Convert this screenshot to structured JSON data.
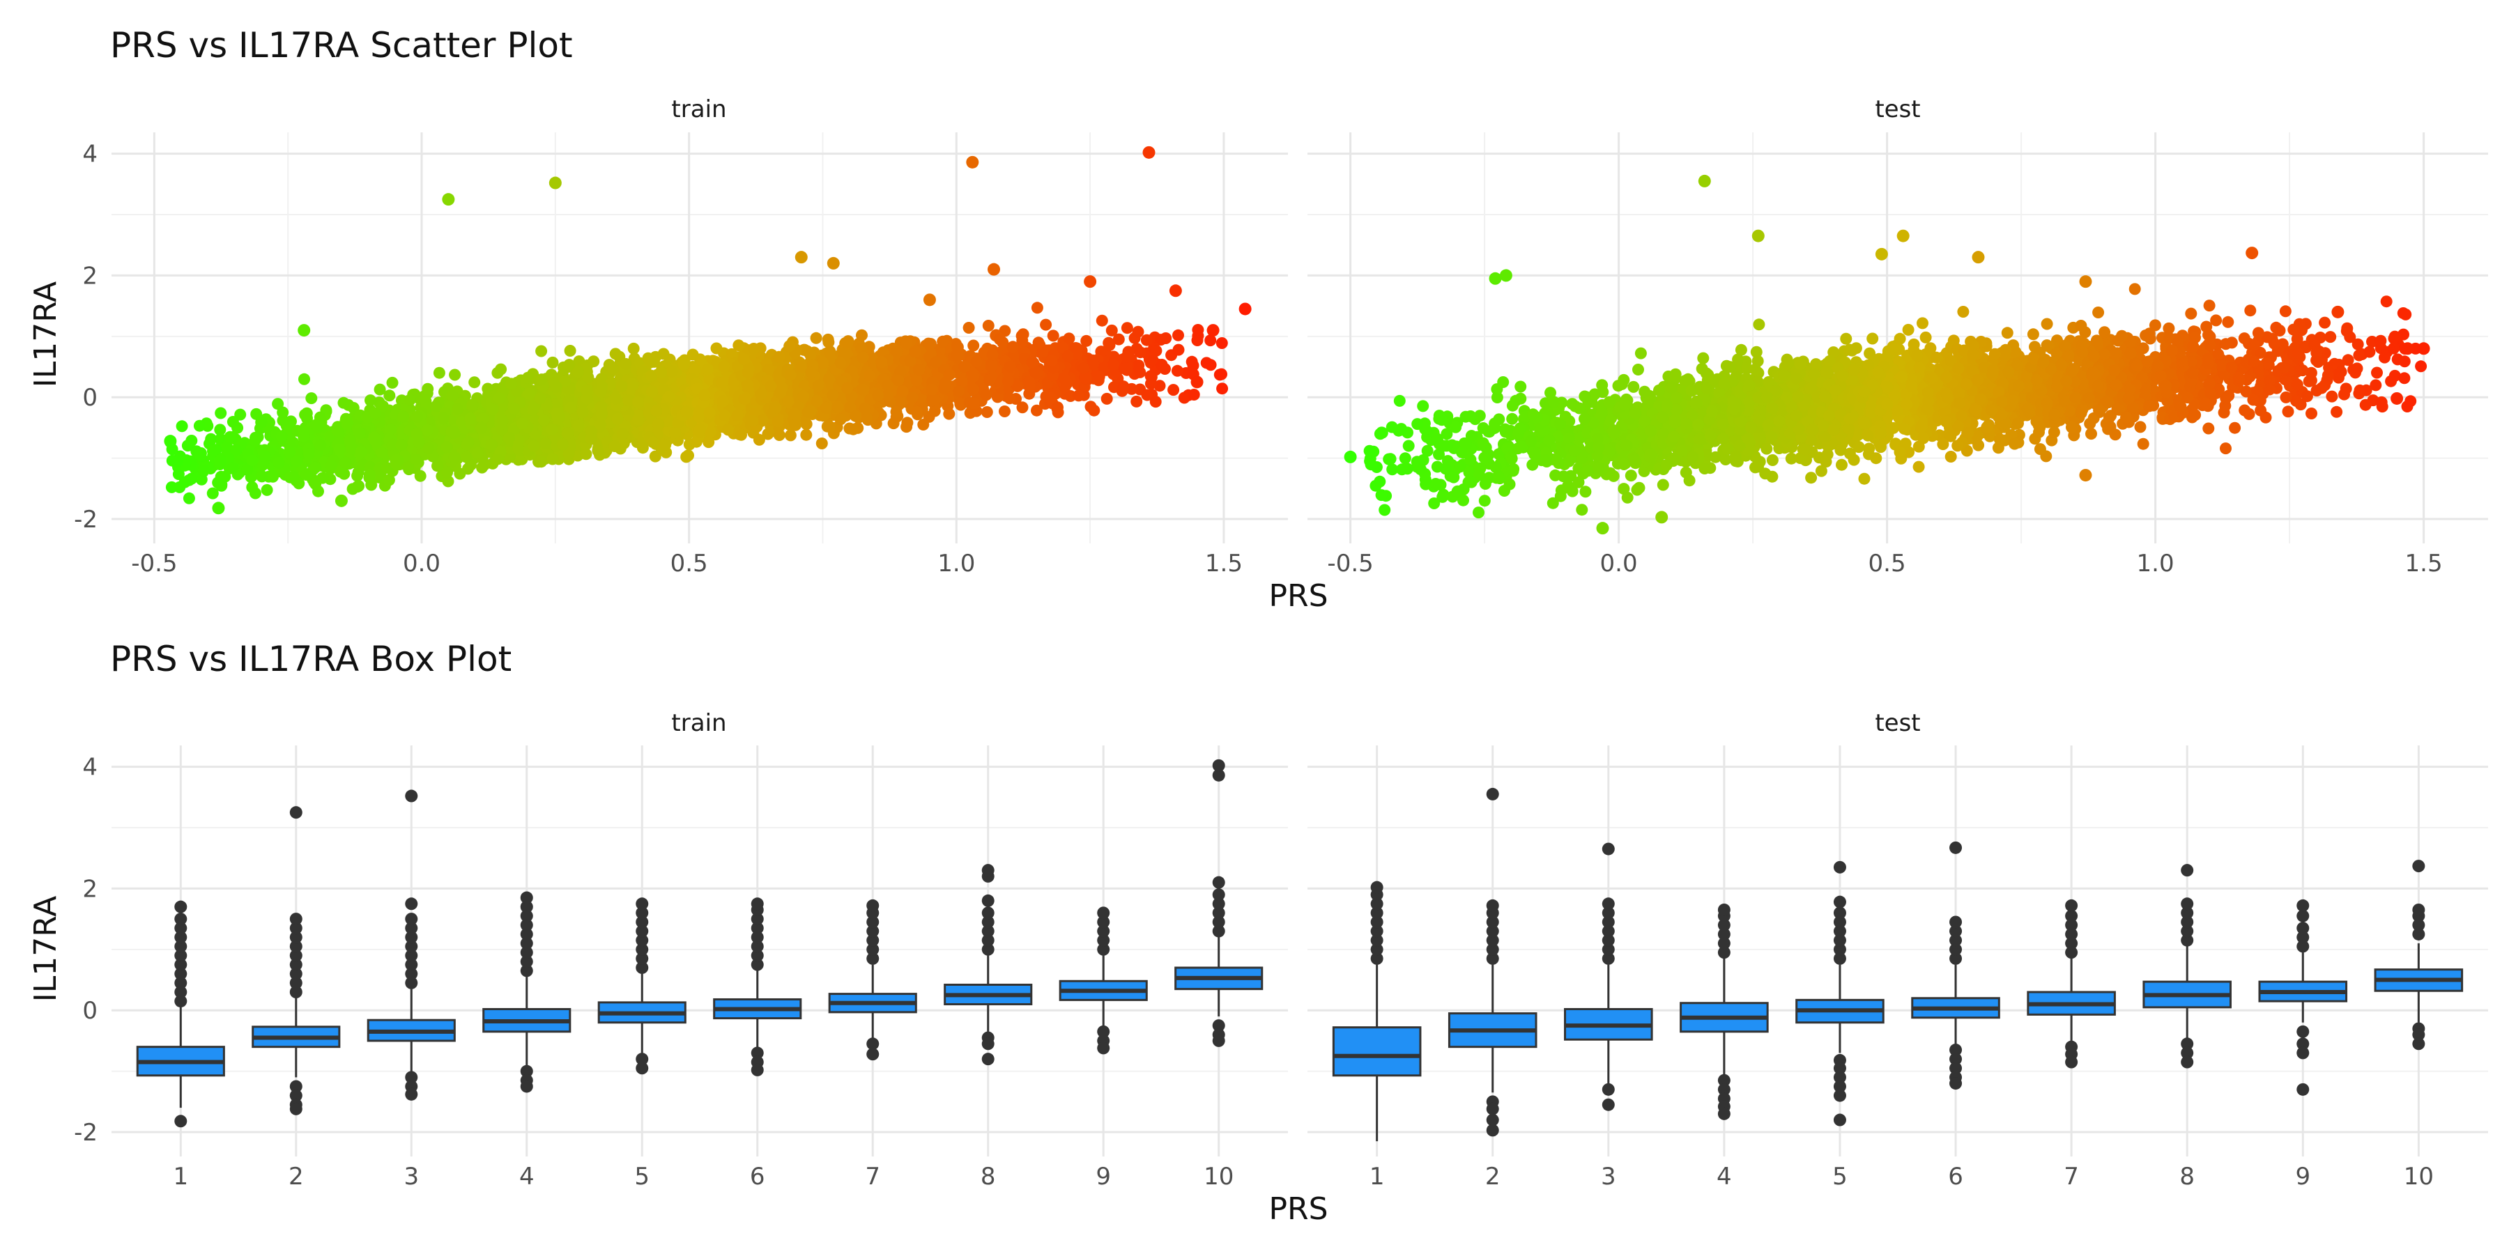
{
  "chart_data": [
    {
      "type": "scatter",
      "title": "PRS vs IL17RA Scatter Plot",
      "xlabel": "PRS",
      "ylabel": "IL17RA",
      "facets": [
        "train",
        "test"
      ],
      "xlim": [
        -0.58,
        1.62
      ],
      "ylim": [
        -2.4,
        4.35
      ],
      "xticks": [
        -0.5,
        0.0,
        0.5,
        1.0,
        1.5
      ],
      "xtick_labels": [
        "-0.5",
        "0.0",
        "0.5",
        "1.0",
        "1.5"
      ],
      "yticks": [
        -2,
        0,
        2,
        4
      ],
      "ytick_labels": [
        "-2",
        "0",
        "2",
        "4"
      ],
      "grid": true,
      "color_scale": {
        "low": "#33ff00",
        "mid": "#cfb400",
        "high": "#ff1a00",
        "range": [
          -0.5,
          1.55
        ]
      },
      "trend": {
        "description": "IL17RA rises with PRS",
        "x": [
          -0.45,
          0.0,
          0.5,
          1.0,
          1.5
        ],
        "y": [
          -1.05,
          -0.6,
          0.0,
          0.35,
          0.65
        ]
      },
      "panels": [
        {
          "facet": "train",
          "n_points_approx": 6000,
          "outliers": [
            [
              0.05,
              3.25
            ],
            [
              0.25,
              3.52
            ],
            [
              1.03,
              3.86
            ],
            [
              1.36,
              4.02
            ],
            [
              0.71,
              2.3
            ],
            [
              0.77,
              2.2
            ],
            [
              1.07,
              2.1
            ],
            [
              1.25,
              1.9
            ],
            [
              1.54,
              1.45
            ],
            [
              -0.22,
              1.1
            ],
            [
              -0.47,
              -0.72
            ],
            [
              -0.38,
              -1.82
            ],
            [
              -0.15,
              -1.7
            ],
            [
              1.45,
              0.25
            ],
            [
              1.48,
              1.1
            ],
            [
              1.41,
              1.75
            ],
            [
              0.95,
              1.6
            ]
          ]
        },
        {
          "facet": "test",
          "n_points_approx": 4000,
          "outliers": [
            [
              -0.5,
              -0.98
            ],
            [
              0.16,
              3.55
            ],
            [
              0.26,
              2.65
            ],
            [
              0.53,
              2.65
            ],
            [
              0.49,
              2.35
            ],
            [
              0.67,
              2.3
            ],
            [
              0.87,
              1.9
            ],
            [
              1.18,
              2.37
            ],
            [
              1.34,
              1.4
            ],
            [
              0.87,
              -1.28
            ],
            [
              -0.03,
              -2.15
            ],
            [
              0.08,
              -1.97
            ],
            [
              -0.3,
              -1.55
            ],
            [
              1.45,
              -0.02
            ],
            [
              1.47,
              0.8
            ],
            [
              1.5,
              0.8
            ],
            [
              -0.21,
              2.0
            ],
            [
              -0.23,
              1.95
            ]
          ]
        }
      ]
    },
    {
      "type": "box",
      "title": "PRS vs IL17RA Box Plot",
      "xlabel": "PRS",
      "ylabel": "IL17RA",
      "facets": [
        "train",
        "test"
      ],
      "categories": [
        "1",
        "2",
        "3",
        "4",
        "5",
        "6",
        "7",
        "8",
        "9",
        "10"
      ],
      "ylim": [
        -2.4,
        4.35
      ],
      "yticks": [
        -2,
        0,
        2,
        4
      ],
      "ytick_labels": [
        "-2",
        "0",
        "2",
        "4"
      ],
      "box_color": "#2190f5",
      "grid": true,
      "panels": [
        {
          "facet": "train",
          "boxes": [
            {
              "category": "1",
              "q1": -1.07,
              "median": -0.85,
              "q3": -0.6,
              "whisker_low": -1.6,
              "whisker_high": 0.05,
              "outliers_low": [
                -1.82
              ],
              "outliers_high": [
                0.15,
                0.3,
                0.45,
                0.6,
                0.75,
                0.9,
                1.05,
                1.2,
                1.35,
                1.5,
                1.7
              ]
            },
            {
              "category": "2",
              "q1": -0.6,
              "median": -0.45,
              "q3": -0.27,
              "whisker_low": -1.1,
              "whisker_high": 0.2,
              "outliers_low": [
                -1.25,
                -1.4,
                -1.55,
                -1.62
              ],
              "outliers_high": [
                0.3,
                0.45,
                0.6,
                0.75,
                0.9,
                1.05,
                1.2,
                1.35,
                1.5,
                3.25
              ]
            },
            {
              "category": "3",
              "q1": -0.5,
              "median": -0.35,
              "q3": -0.16,
              "whisker_low": -1.0,
              "whisker_high": 0.35,
              "outliers_low": [
                -1.1,
                -1.25,
                -1.38
              ],
              "outliers_high": [
                0.45,
                0.6,
                0.75,
                0.9,
                1.05,
                1.2,
                1.35,
                1.5,
                1.75,
                3.52
              ]
            },
            {
              "category": "4",
              "q1": -0.35,
              "median": -0.18,
              "q3": 0.02,
              "whisker_low": -0.9,
              "whisker_high": 0.55,
              "outliers_low": [
                -1.0,
                -1.15,
                -1.25
              ],
              "outliers_high": [
                0.65,
                0.8,
                0.95,
                1.1,
                1.25,
                1.4,
                1.55,
                1.7,
                1.85
              ]
            },
            {
              "category": "5",
              "q1": -0.2,
              "median": -0.05,
              "q3": 0.13,
              "whisker_low": -0.7,
              "whisker_high": 0.6,
              "outliers_low": [
                -0.8,
                -0.95
              ],
              "outliers_high": [
                0.7,
                0.85,
                1.0,
                1.15,
                1.3,
                1.45,
                1.6,
                1.75
              ]
            },
            {
              "category": "6",
              "q1": -0.13,
              "median": 0.02,
              "q3": 0.18,
              "whisker_low": -0.6,
              "whisker_high": 0.65,
              "outliers_low": [
                -0.7,
                -0.85,
                -0.98
              ],
              "outliers_high": [
                0.75,
                0.9,
                1.05,
                1.2,
                1.35,
                1.5,
                1.65,
                1.75
              ]
            },
            {
              "category": "7",
              "q1": -0.03,
              "median": 0.12,
              "q3": 0.27,
              "whisker_low": -0.45,
              "whisker_high": 0.75,
              "outliers_low": [
                -0.55,
                -0.72
              ],
              "outliers_high": [
                0.85,
                1.0,
                1.15,
                1.3,
                1.45,
                1.6,
                1.72
              ]
            },
            {
              "category": "8",
              "q1": 0.1,
              "median": 0.25,
              "q3": 0.42,
              "whisker_low": -0.35,
              "whisker_high": 0.9,
              "outliers_low": [
                -0.45,
                -0.55,
                -0.8
              ],
              "outliers_high": [
                1.0,
                1.15,
                1.3,
                1.45,
                1.6,
                1.8,
                2.2,
                2.3
              ]
            },
            {
              "category": "9",
              "q1": 0.17,
              "median": 0.32,
              "q3": 0.48,
              "whisker_low": -0.25,
              "whisker_high": 0.9,
              "outliers_low": [
                -0.35,
                -0.5,
                -0.62
              ],
              "outliers_high": [
                1.0,
                1.15,
                1.3,
                1.45,
                1.6
              ]
            },
            {
              "category": "10",
              "q1": 0.35,
              "median": 0.53,
              "q3": 0.7,
              "whisker_low": -0.1,
              "whisker_high": 1.2,
              "outliers_low": [
                -0.25,
                -0.4,
                -0.5
              ],
              "outliers_high": [
                1.3,
                1.45,
                1.6,
                1.75,
                1.9,
                2.1,
                3.86,
                4.02
              ]
            }
          ]
        },
        {
          "facet": "test",
          "boxes": [
            {
              "category": "1",
              "q1": -1.07,
              "median": -0.75,
              "q3": -0.28,
              "whisker_low": -2.15,
              "whisker_high": 0.75,
              "outliers_low": [],
              "outliers_high": [
                0.85,
                1.0,
                1.15,
                1.3,
                1.45,
                1.6,
                1.75,
                1.9,
                2.02
              ]
            },
            {
              "category": "2",
              "q1": -0.6,
              "median": -0.33,
              "q3": -0.05,
              "whisker_low": -1.35,
              "whisker_high": 0.75,
              "outliers_low": [
                -1.5,
                -1.62,
                -1.8,
                -1.97
              ],
              "outliers_high": [
                0.85,
                1.0,
                1.15,
                1.3,
                1.45,
                1.6,
                1.72,
                3.55
              ]
            },
            {
              "category": "3",
              "q1": -0.48,
              "median": -0.25,
              "q3": 0.02,
              "whisker_low": -1.2,
              "whisker_high": 0.75,
              "outliers_low": [
                -1.3,
                -1.55
              ],
              "outliers_high": [
                0.85,
                1.0,
                1.15,
                1.3,
                1.45,
                1.6,
                1.75,
                2.65
              ]
            },
            {
              "category": "4",
              "q1": -0.35,
              "median": -0.12,
              "q3": 0.12,
              "whisker_low": -1.05,
              "whisker_high": 0.85,
              "outliers_low": [
                -1.15,
                -1.3,
                -1.45,
                -1.58,
                -1.7
              ],
              "outliers_high": [
                0.95,
                1.1,
                1.25,
                1.4,
                1.55,
                1.65
              ]
            },
            {
              "category": "5",
              "q1": -0.2,
              "median": 0.0,
              "q3": 0.17,
              "whisker_low": -0.7,
              "whisker_high": 0.75,
              "outliers_low": [
                -0.82,
                -0.95,
                -1.1,
                -1.25,
                -1.4,
                -1.8
              ],
              "outliers_high": [
                0.85,
                1.0,
                1.15,
                1.3,
                1.45,
                1.6,
                1.78,
                2.35
              ]
            },
            {
              "category": "6",
              "q1": -0.12,
              "median": 0.03,
              "q3": 0.2,
              "whisker_low": -0.55,
              "whisker_high": 0.75,
              "outliers_low": [
                -0.65,
                -0.8,
                -0.95,
                -1.1,
                -1.2
              ],
              "outliers_high": [
                0.85,
                1.0,
                1.15,
                1.3,
                1.45,
                2.67
              ]
            },
            {
              "category": "7",
              "q1": -0.07,
              "median": 0.1,
              "q3": 0.3,
              "whisker_low": -0.5,
              "whisker_high": 0.85,
              "outliers_low": [
                -0.6,
                -0.72,
                -0.85
              ],
              "outliers_high": [
                0.95,
                1.1,
                1.25,
                1.4,
                1.55,
                1.72
              ]
            },
            {
              "category": "8",
              "q1": 0.05,
              "median": 0.25,
              "q3": 0.47,
              "whisker_low": -0.45,
              "whisker_high": 1.05,
              "outliers_low": [
                -0.55,
                -0.7,
                -0.85
              ],
              "outliers_high": [
                1.15,
                1.3,
                1.45,
                1.6,
                1.75,
                2.3
              ]
            },
            {
              "category": "9",
              "q1": 0.15,
              "median": 0.3,
              "q3": 0.47,
              "whisker_low": -0.2,
              "whisker_high": 0.95,
              "outliers_low": [
                -0.35,
                -0.55,
                -0.7,
                -1.3
              ],
              "outliers_high": [
                1.05,
                1.2,
                1.35,
                1.55,
                1.72
              ]
            },
            {
              "category": "10",
              "q1": 0.32,
              "median": 0.5,
              "q3": 0.67,
              "whisker_low": -0.2,
              "whisker_high": 1.1,
              "outliers_low": [
                -0.3,
                -0.4,
                -0.55
              ],
              "outliers_high": [
                1.25,
                1.4,
                1.55,
                1.65,
                2.37
              ]
            }
          ]
        }
      ]
    }
  ]
}
